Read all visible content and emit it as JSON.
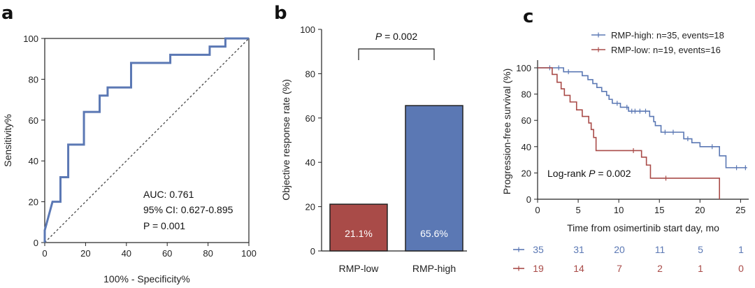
{
  "panels": {
    "a": "a",
    "b": "b",
    "c": "c"
  },
  "chart_data": [
    {
      "type": "line",
      "panel": "a",
      "xlabel": "100% - Specificity%",
      "ylabel": "Sensitivity%",
      "xlim": [
        0,
        100
      ],
      "ylim": [
        0,
        100
      ],
      "xticks": [
        "0",
        "20",
        "40",
        "60",
        "80",
        "100"
      ],
      "yticks": [
        "0",
        "20",
        "40",
        "60",
        "80",
        "100"
      ],
      "roc": [
        [
          0,
          0
        ],
        [
          0,
          6
        ],
        [
          3.8,
          20
        ],
        [
          7.7,
          20
        ],
        [
          7.7,
          32
        ],
        [
          11.5,
          32
        ],
        [
          11.5,
          48
        ],
        [
          19.2,
          48
        ],
        [
          19.2,
          64
        ],
        [
          26.9,
          64
        ],
        [
          26.9,
          72
        ],
        [
          30.8,
          72
        ],
        [
          30.8,
          76
        ],
        [
          42.3,
          76
        ],
        [
          42.3,
          88
        ],
        [
          61.5,
          88
        ],
        [
          61.5,
          92
        ],
        [
          80.8,
          92
        ],
        [
          80.8,
          96
        ],
        [
          88.5,
          96
        ],
        [
          88.5,
          100
        ],
        [
          100,
          100
        ]
      ],
      "reference_line": [
        [
          0,
          0
        ],
        [
          100,
          100
        ]
      ],
      "annotations": [
        "AUC: 0.761",
        "95% CI: 0.627-0.895",
        "P = 0.001"
      ],
      "colors": {
        "roc": "#5b78b4",
        "reference": "#444444"
      }
    },
    {
      "type": "bar",
      "panel": "b",
      "categories": [
        "RMP-low",
        "RMP-high"
      ],
      "values": [
        21.1,
        65.6
      ],
      "value_labels": [
        "21.1%",
        "65.6%"
      ],
      "colors": [
        "#a94b48",
        "#5b78b4"
      ],
      "ylabel": "Objective response rate (%)",
      "ylim": [
        0,
        100
      ],
      "yticks": [
        "0",
        "20",
        "40",
        "60",
        "80",
        "100"
      ],
      "significance": {
        "p_symbol": "P",
        "p_value": "= 0.002"
      }
    },
    {
      "type": "line",
      "panel": "c",
      "xlabel": "Time from osimertinib start day, mo",
      "ylabel": "Progression-free survival (%)",
      "xlim": [
        0,
        26
      ],
      "ylim": [
        0,
        100
      ],
      "xticks": [
        "0",
        "5",
        "10",
        "15",
        "20",
        "25"
      ],
      "yticks": [
        "0",
        "20",
        "40",
        "60",
        "80",
        "100"
      ],
      "logrank": {
        "label": "Log-rank",
        "p_symbol": "P",
        "p_value": "= 0.002"
      },
      "series": [
        {
          "name": "RMP-high: n=35, events=18",
          "color": "#5b78b4",
          "steps": [
            [
              0,
              100
            ],
            [
              3.2,
              100
            ],
            [
              3.2,
              97
            ],
            [
              5.5,
              97
            ],
            [
              5.5,
              94
            ],
            [
              6.2,
              94
            ],
            [
              6.2,
              91
            ],
            [
              6.8,
              91
            ],
            [
              6.8,
              88
            ],
            [
              7.3,
              88
            ],
            [
              7.3,
              85
            ],
            [
              7.9,
              85
            ],
            [
              7.9,
              82
            ],
            [
              8.5,
              82
            ],
            [
              8.5,
              79
            ],
            [
              8.8,
              79
            ],
            [
              8.8,
              76
            ],
            [
              9.2,
              76
            ],
            [
              9.2,
              73
            ],
            [
              10.2,
              73
            ],
            [
              10.2,
              70
            ],
            [
              11.2,
              70
            ],
            [
              11.2,
              67
            ],
            [
              13.8,
              67
            ],
            [
              13.8,
              63
            ],
            [
              14.3,
              63
            ],
            [
              14.3,
              59
            ],
            [
              14.5,
              59
            ],
            [
              14.5,
              56
            ],
            [
              15.2,
              56
            ],
            [
              15.2,
              51
            ],
            [
              18,
              51
            ],
            [
              18,
              46
            ],
            [
              19,
              46
            ],
            [
              19,
              43
            ],
            [
              20,
              43
            ],
            [
              20,
              40
            ],
            [
              22.4,
              40
            ],
            [
              22.4,
              33
            ],
            [
              23.2,
              33
            ],
            [
              23.2,
              24
            ],
            [
              25.8,
              24
            ]
          ],
          "censors": [
            [
              1.5,
              100
            ],
            [
              2.6,
              100
            ],
            [
              3.8,
              97
            ],
            [
              9.8,
              73
            ],
            [
              11,
              70
            ],
            [
              11.6,
              67
            ],
            [
              12,
              67
            ],
            [
              12.6,
              67
            ],
            [
              13.3,
              67
            ],
            [
              15.7,
              51
            ],
            [
              16.7,
              51
            ],
            [
              18.5,
              46
            ],
            [
              21.5,
              40
            ],
            [
              24.5,
              24
            ],
            [
              25.6,
              24
            ]
          ],
          "at_risk": [
            "35",
            "31",
            "20",
            "11",
            "5",
            "1"
          ]
        },
        {
          "name": "RMP-low: n=19, events=16",
          "color": "#a94b48",
          "steps": [
            [
              0,
              100
            ],
            [
              1.8,
              100
            ],
            [
              1.8,
              95
            ],
            [
              2.4,
              95
            ],
            [
              2.4,
              89
            ],
            [
              2.9,
              89
            ],
            [
              2.9,
              84
            ],
            [
              3.3,
              84
            ],
            [
              3.3,
              79
            ],
            [
              4,
              79
            ],
            [
              4,
              74
            ],
            [
              4.8,
              74
            ],
            [
              4.8,
              68
            ],
            [
              5.5,
              68
            ],
            [
              5.5,
              63
            ],
            [
              6.3,
              63
            ],
            [
              6.3,
              58
            ],
            [
              6.6,
              58
            ],
            [
              6.6,
              53
            ],
            [
              6.9,
              53
            ],
            [
              6.9,
              47
            ],
            [
              7.2,
              47
            ],
            [
              7.2,
              37
            ],
            [
              12.8,
              37
            ],
            [
              12.8,
              32
            ],
            [
              13.4,
              32
            ],
            [
              13.4,
              26
            ],
            [
              13.9,
              26
            ],
            [
              13.9,
              16
            ],
            [
              22.4,
              16
            ],
            [
              22.4,
              0
            ]
          ],
          "censors": [
            [
              11.8,
              37
            ],
            [
              15.8,
              16
            ]
          ],
          "at_risk": [
            "19",
            "14",
            "7",
            "2",
            "1",
            "0"
          ]
        }
      ]
    }
  ]
}
